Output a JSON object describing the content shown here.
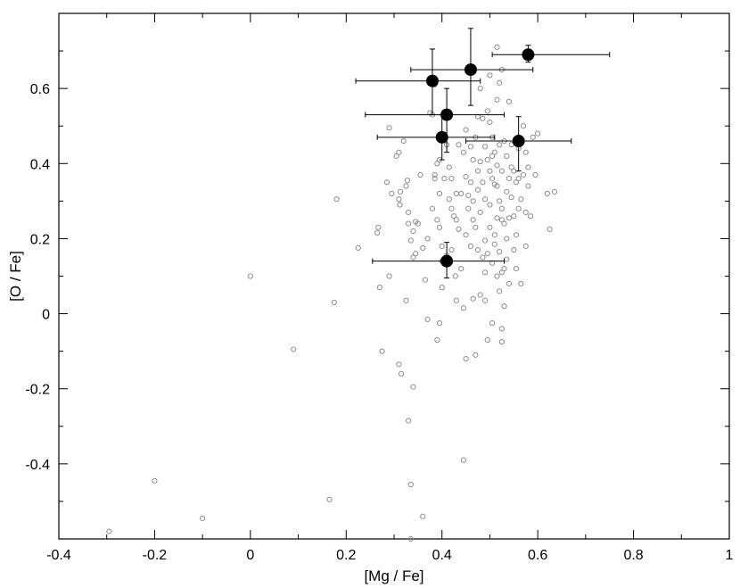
{
  "chart_data": {
    "type": "scatter",
    "xlabel": "[Mg / Fe]",
    "ylabel": "[O / Fe]",
    "xlim": [
      -0.4,
      1.0
    ],
    "ylim": [
      -0.6,
      0.8
    ],
    "xticks": [
      "-0.4",
      "-0.2",
      "0",
      "0.2",
      "0.4",
      "0.6",
      "0.8",
      "1"
    ],
    "yticks": [
      "-0.4",
      "-0.2",
      "0",
      "0.2",
      "0.4",
      "0.6"
    ],
    "grid": false,
    "legend": "none",
    "colors": {
      "open_marker": "#8c8c8c",
      "filled_marker": "#000000",
      "axis": "#000000"
    },
    "series": [
      {
        "marker": "open-circle",
        "points": [
          [
            -0.295,
            -0.58
          ],
          [
            -0.2,
            -0.445
          ],
          [
            -0.1,
            -0.545
          ],
          [
            0.0,
            0.1
          ],
          [
            0.09,
            -0.095
          ],
          [
            0.165,
            -0.495
          ],
          [
            0.175,
            0.03
          ],
          [
            0.18,
            0.305
          ],
          [
            0.225,
            0.175
          ],
          [
            0.265,
            0.215
          ],
          [
            0.267,
            0.23
          ],
          [
            0.27,
            0.07
          ],
          [
            0.275,
            -0.1
          ],
          [
            0.285,
            0.35
          ],
          [
            0.29,
            0.495
          ],
          [
            0.29,
            0.1
          ],
          [
            0.295,
            0.32
          ],
          [
            0.305,
            0.42
          ],
          [
            0.31,
            0.43
          ],
          [
            0.31,
            0.305
          ],
          [
            0.312,
            0.29
          ],
          [
            0.313,
            0.325
          ],
          [
            0.31,
            -0.135
          ],
          [
            0.315,
            -0.16
          ],
          [
            0.32,
            0.46
          ],
          [
            0.325,
            0.34
          ],
          [
            0.325,
            0.035
          ],
          [
            0.328,
            0.355
          ],
          [
            0.33,
            0.27
          ],
          [
            0.33,
            0.24
          ],
          [
            0.33,
            -0.285
          ],
          [
            0.335,
            0.195
          ],
          [
            0.34,
            0.22
          ],
          [
            0.34,
            0.15
          ],
          [
            0.335,
            -0.455
          ],
          [
            0.34,
            -0.195
          ],
          [
            0.345,
            0.16
          ],
          [
            0.35,
            0.24
          ],
          [
            0.36,
            0.175
          ],
          [
            0.36,
            -0.54
          ],
          [
            0.365,
            0.09
          ],
          [
            0.37,
            0.2
          ],
          [
            0.37,
            -0.015
          ],
          [
            0.375,
            0.535
          ],
          [
            0.38,
            0.28
          ],
          [
            0.385,
            0.37
          ],
          [
            0.385,
            0.36
          ],
          [
            0.39,
            0.4
          ],
          [
            0.39,
            0.25
          ],
          [
            0.39,
            -0.07
          ],
          [
            0.395,
            0.41
          ],
          [
            0.395,
            0.32
          ],
          [
            0.395,
            0.23
          ],
          [
            0.395,
            -0.025
          ],
          [
            0.4,
            0.18
          ],
          [
            0.4,
            0.07
          ],
          [
            0.405,
            0.36
          ],
          [
            0.41,
            0.45
          ],
          [
            0.41,
            0.155
          ],
          [
            0.415,
            0.39
          ],
          [
            0.415,
            0.305
          ],
          [
            0.42,
            0.17
          ],
          [
            0.425,
            0.26
          ],
          [
            0.428,
            0.1
          ],
          [
            0.43,
            0.32
          ],
          [
            0.43,
            0.035
          ],
          [
            0.435,
            0.45
          ],
          [
            0.435,
            0.225
          ],
          [
            0.44,
            0.32
          ],
          [
            0.44,
            0.12
          ],
          [
            0.445,
            0.015
          ],
          [
            0.445,
            -0.39
          ],
          [
            0.45,
            0.49
          ],
          [
            0.45,
            0.365
          ],
          [
            0.45,
            -0.12
          ],
          [
            0.455,
            0.28
          ],
          [
            0.46,
            0.445
          ],
          [
            0.46,
            0.35
          ],
          [
            0.465,
            0.41
          ],
          [
            0.465,
            0.25
          ],
          [
            0.465,
            0.04
          ],
          [
            0.47,
            0.23
          ],
          [
            0.47,
            -0.11
          ],
          [
            0.475,
            0.525
          ],
          [
            0.475,
            0.38
          ],
          [
            0.475,
            0.33
          ],
          [
            0.475,
            0.17
          ],
          [
            0.48,
            0.405
          ],
          [
            0.48,
            0.27
          ],
          [
            0.48,
            0.05
          ],
          [
            0.485,
            0.52
          ],
          [
            0.485,
            0.35
          ],
          [
            0.49,
            0.445
          ],
          [
            0.49,
            0.305
          ],
          [
            0.49,
            0.195
          ],
          [
            0.49,
            0.11
          ],
          [
            0.49,
            0.035
          ],
          [
            0.495,
            0.41
          ],
          [
            0.495,
            0.16
          ],
          [
            0.495,
            -0.07
          ],
          [
            0.5,
            0.635
          ],
          [
            0.5,
            0.51
          ],
          [
            0.5,
            0.38
          ],
          [
            0.5,
            0.29
          ],
          [
            0.5,
            0.23
          ],
          [
            0.505,
            0.42
          ],
          [
            0.505,
            0.36
          ],
          [
            0.505,
            0.135
          ],
          [
            0.505,
            -0.025
          ],
          [
            0.51,
            0.345
          ],
          [
            0.51,
            0.21
          ],
          [
            0.51,
            0.185
          ],
          [
            0.515,
            0.71
          ],
          [
            0.515,
            0.57
          ],
          [
            0.515,
            0.395
          ],
          [
            0.515,
            0.255
          ],
          [
            0.515,
            0.1
          ],
          [
            0.52,
            0.615
          ],
          [
            0.52,
            0.45
          ],
          [
            0.52,
            0.3
          ],
          [
            0.52,
            0.165
          ],
          [
            0.52,
            0.06
          ],
          [
            0.525,
            0.65
          ],
          [
            0.525,
            0.38
          ],
          [
            0.525,
            0.28
          ],
          [
            0.525,
            0.11
          ],
          [
            0.525,
            -0.04
          ],
          [
            0.525,
            -0.075
          ],
          [
            0.53,
            0.46
          ],
          [
            0.53,
            0.24
          ],
          [
            0.53,
            0.12
          ],
          [
            0.53,
            0.02
          ],
          [
            0.535,
            0.42
          ],
          [
            0.535,
            0.325
          ],
          [
            0.535,
            0.2
          ],
          [
            0.54,
            0.565
          ],
          [
            0.54,
            0.36
          ],
          [
            0.54,
            0.255
          ],
          [
            0.54,
            0.08
          ],
          [
            0.545,
            0.39
          ],
          [
            0.545,
            0.31
          ],
          [
            0.55,
            0.26
          ],
          [
            0.55,
            0.17
          ],
          [
            0.555,
            0.35
          ],
          [
            0.555,
            0.21
          ],
          [
            0.555,
            0.12
          ],
          [
            0.56,
            0.44
          ],
          [
            0.56,
            0.28
          ],
          [
            0.565,
            0.08
          ],
          [
            0.57,
            0.5
          ],
          [
            0.57,
            0.37
          ],
          [
            0.575,
            0.27
          ],
          [
            0.575,
            0.18
          ],
          [
            0.58,
            0.34
          ],
          [
            0.585,
            0.26
          ],
          [
            0.59,
            0.47
          ],
          [
            0.595,
            0.37
          ],
          [
            0.6,
            0.48
          ],
          [
            0.62,
            0.32
          ],
          [
            0.625,
            0.225
          ],
          [
            0.635,
            0.325
          ],
          [
            0.38,
            0.53
          ],
          [
            0.385,
            0.61
          ],
          [
            0.42,
            0.36
          ],
          [
            0.43,
            0.25
          ],
          [
            0.445,
            0.43
          ],
          [
            0.455,
            0.315
          ],
          [
            0.46,
            0.18
          ],
          [
            0.47,
            0.47
          ],
          [
            0.48,
            0.6
          ],
          [
            0.495,
            0.54
          ],
          [
            0.505,
            0.47
          ],
          [
            0.51,
            0.43
          ],
          [
            0.515,
            0.34
          ],
          [
            0.525,
            0.25
          ],
          [
            0.535,
            0.145
          ],
          [
            0.545,
            0.45
          ],
          [
            0.55,
            0.38
          ],
          [
            0.56,
            0.36
          ],
          [
            0.565,
            0.305
          ],
          [
            0.575,
            0.43
          ],
          [
            0.58,
            0.39
          ],
          [
            0.345,
            0.245
          ],
          [
            0.355,
            0.37
          ],
          [
            0.4,
            0.14
          ],
          [
            0.405,
            0.14
          ],
          [
            0.42,
            0.28
          ],
          [
            0.45,
            0.21
          ],
          [
            0.465,
            0.3
          ],
          [
            0.485,
            0.15
          ],
          [
            0.335,
            -0.6
          ]
        ]
      },
      {
        "marker": "filled-circle",
        "points": [
          {
            "x": 0.58,
            "y": 0.69,
            "xerr": [
              0.075,
              0.17
            ],
            "yerr": [
              0.02,
              0.025
            ]
          },
          {
            "x": 0.46,
            "y": 0.65,
            "xerr": [
              0.125,
              0.13
            ],
            "yerr": [
              0.095,
              0.11
            ]
          },
          {
            "x": 0.38,
            "y": 0.62,
            "xerr": [
              0.16,
              0.1
            ],
            "yerr": [
              0.09,
              0.085
            ]
          },
          {
            "x": 0.41,
            "y": 0.53,
            "xerr": [
              0.17,
              0.12
            ],
            "yerr": [
              0.1,
              0.07
            ]
          },
          {
            "x": 0.4,
            "y": 0.47,
            "xerr": [
              0.135,
              0.11
            ],
            "yerr": [
              0.06,
              0.06
            ]
          },
          {
            "x": 0.56,
            "y": 0.46,
            "xerr": [
              0.11,
              0.11
            ],
            "yerr": [
              0.08,
              0.065
            ]
          },
          {
            "x": 0.41,
            "y": 0.14,
            "xerr": [
              0.155,
              0.12
            ],
            "yerr": [
              0.045,
              0.05
            ]
          }
        ]
      }
    ]
  }
}
